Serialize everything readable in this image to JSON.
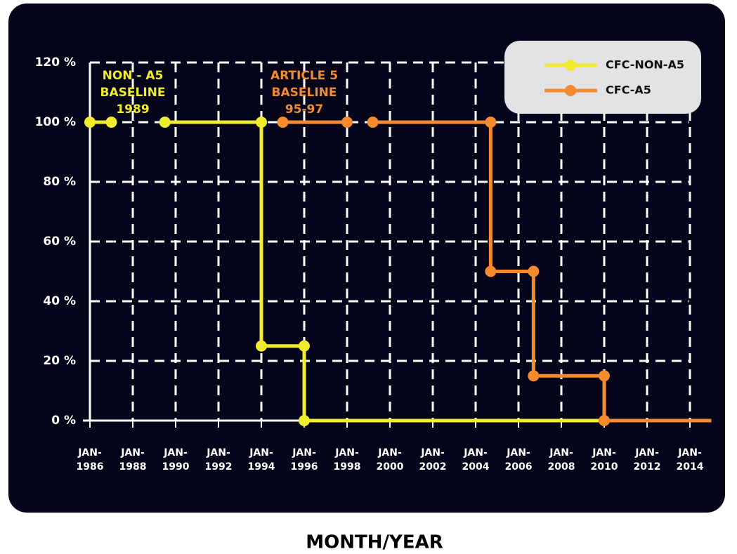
{
  "chart_data": {
    "type": "line",
    "xlabel": "MONTH/YEAR",
    "xlim": [
      1986,
      2015
    ],
    "ylim": [
      0,
      120
    ],
    "xticks": [
      {
        "value": 1986,
        "label": "JAN- 1986"
      },
      {
        "value": 1988,
        "label": "JAN- 1988"
      },
      {
        "value": 1990,
        "label": "JAN- 1990"
      },
      {
        "value": 1992,
        "label": "JAN- 1992"
      },
      {
        "value": 1994,
        "label": "JAN- 1994"
      },
      {
        "value": 1996,
        "label": "JAN- 1996"
      },
      {
        "value": 1998,
        "label": "JAN- 1998"
      },
      {
        "value": 2000,
        "label": "JAN- 2000"
      },
      {
        "value": 2002,
        "label": "JAN- 2002"
      },
      {
        "value": 2004,
        "label": "JAN- 2004"
      },
      {
        "value": 2006,
        "label": "JAN- 2006"
      },
      {
        "value": 2008,
        "label": "JAN- 2008"
      },
      {
        "value": 2010,
        "label": "JAN- 2010"
      },
      {
        "value": 2012,
        "label": "JAN- 2012"
      },
      {
        "value": 2014,
        "label": "JAN- 2014"
      }
    ],
    "yticks": [
      {
        "value": 0,
        "label": "0 %"
      },
      {
        "value": 20,
        "label": "20 %"
      },
      {
        "value": 40,
        "label": "40 %"
      },
      {
        "value": 60,
        "label": "60 %"
      },
      {
        "value": 80,
        "label": "80 %"
      },
      {
        "value": 100,
        "label": "100 %"
      },
      {
        "value": 120,
        "label": "120 %"
      }
    ],
    "grid": true,
    "legend": "upper right",
    "series": [
      {
        "name": "CFC-NON-A5",
        "color": "#f2ec2e",
        "x": [
          1986,
          1987,
          1988,
          1989.5,
          1994,
          1994,
          1996,
          1996,
          2010
        ],
        "values": [
          100,
          100,
          null,
          100,
          100,
          25,
          25,
          0,
          0
        ]
      },
      {
        "name": "CFC-A5",
        "color": "#f58a2f",
        "x": [
          1995,
          1998,
          1998.5,
          1999.2,
          2004.7,
          2004.7,
          2006.7,
          2006.7,
          2010,
          2010,
          2015
        ],
        "values": [
          100,
          100,
          null,
          100,
          100,
          50,
          50,
          15,
          15,
          0,
          0
        ]
      }
    ],
    "annotations": [
      {
        "lines": [
          "NON - A5",
          "BASELINE",
          "1989"
        ],
        "x": 1988,
        "y": 108,
        "color": "#f2ec2e"
      },
      {
        "lines": [
          "ARTICLE 5",
          "BASELINE",
          "95-97"
        ],
        "x": 1996,
        "y": 108,
        "color": "#f58a2f"
      }
    ]
  }
}
